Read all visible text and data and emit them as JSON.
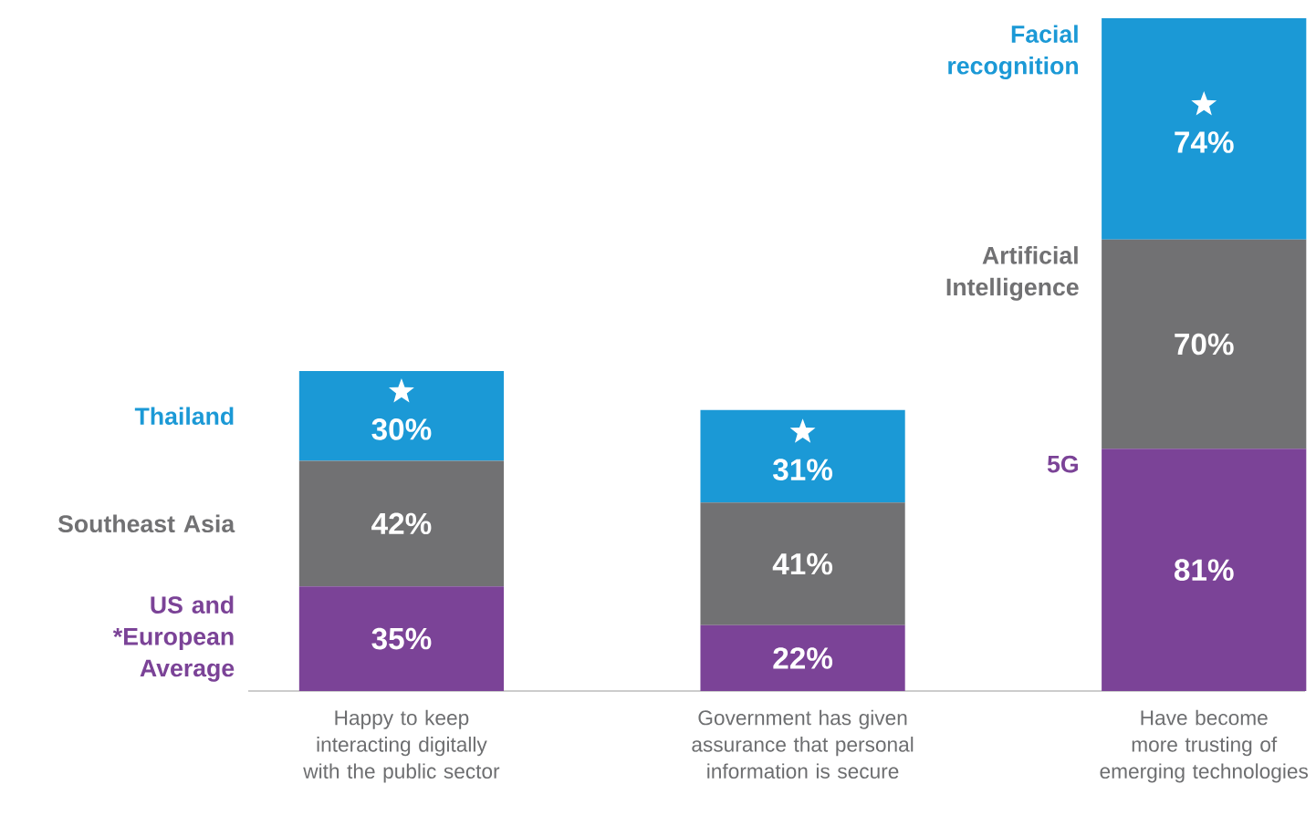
{
  "chart_data": {
    "type": "bar",
    "stacked": true,
    "categories": [
      "Happy to keep interacting digitally with the public sector",
      "Government has given assurance that personal information is secure",
      "Have become more trusting of emerging technologies"
    ],
    "series": [
      {
        "name": "US and *European Average",
        "color": "#7b4397",
        "values": [
          35,
          22,
          81
        ],
        "value_labels": [
          "35%",
          "22%",
          "81%"
        ]
      },
      {
        "name": "Southeast Asia",
        "color": "#717173",
        "values": [
          42,
          41,
          70
        ],
        "value_labels": [
          "42%",
          "41%",
          "70%"
        ]
      },
      {
        "name": "Thailand",
        "color": "#1b99d6",
        "values": [
          30,
          31,
          74
        ],
        "value_labels": [
          "30%",
          "31%",
          "74%"
        ]
      }
    ],
    "annotations": [
      "5G",
      "Artificial Intelligence",
      "Facial recognition"
    ]
  }
}
